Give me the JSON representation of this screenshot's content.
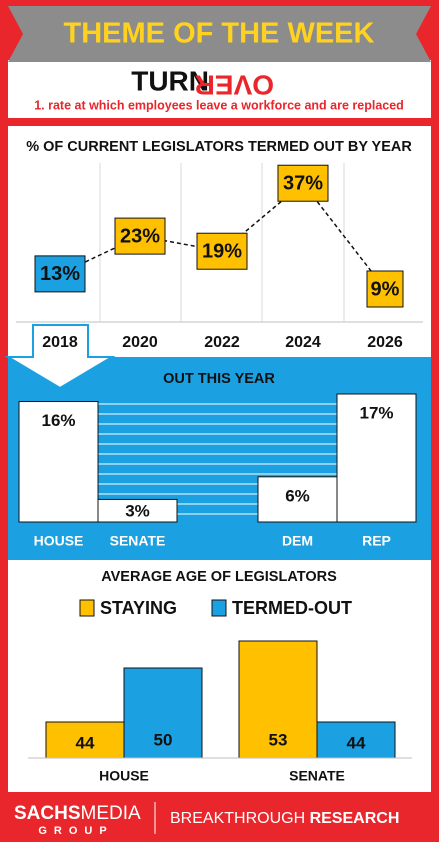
{
  "header": {
    "banner": "THEME OF THE WEEK",
    "word_upright": "TURN",
    "word_flipped": "OVER",
    "definition": "1. rate at which employees leave a workforce and are replaced"
  },
  "chart_data": [
    {
      "type": "line",
      "title": "% OF CURRENT LEGISLATORS TERMED OUT BY YEAR",
      "categories": [
        "2018",
        "2020",
        "2022",
        "2024",
        "2026"
      ],
      "values": [
        13,
        23,
        19,
        37,
        9
      ],
      "value_labels": [
        "13%",
        "23%",
        "19%",
        "37%",
        "9%"
      ],
      "colors": [
        "#1ba1e2",
        "#ffc000",
        "#ffc000",
        "#ffc000",
        "#ffc000"
      ],
      "ylim": [
        0,
        45
      ],
      "grid": true
    },
    {
      "type": "bar",
      "title": "OUT THIS YEAR",
      "categories": [
        "HOUSE",
        "SENATE",
        "DEM",
        "REP"
      ],
      "values": [
        16,
        3,
        6,
        17
      ],
      "value_labels": [
        "16%",
        "3%",
        "6%",
        "17%"
      ],
      "color": "#ffffff",
      "ylim": [
        0,
        17
      ]
    },
    {
      "type": "grouped_bar",
      "title": "AVERAGE AGE OF LEGISLATORS",
      "categories": [
        "HOUSE",
        "SENATE"
      ],
      "series": [
        {
          "name": "STAYING",
          "color": "#ffc000",
          "values": [
            44,
            53
          ]
        },
        {
          "name": "TERMED-OUT",
          "color": "#1ba1e2",
          "values": [
            50,
            44
          ]
        }
      ],
      "ylim": [
        40,
        55
      ]
    }
  ],
  "footer": {
    "brand_bold": "SACHS",
    "brand_light": "MEDIA",
    "brand_sub": "GROUP",
    "tagline_light": "BREAKTHROUGH",
    "tagline_bold": "RESEARCH"
  }
}
